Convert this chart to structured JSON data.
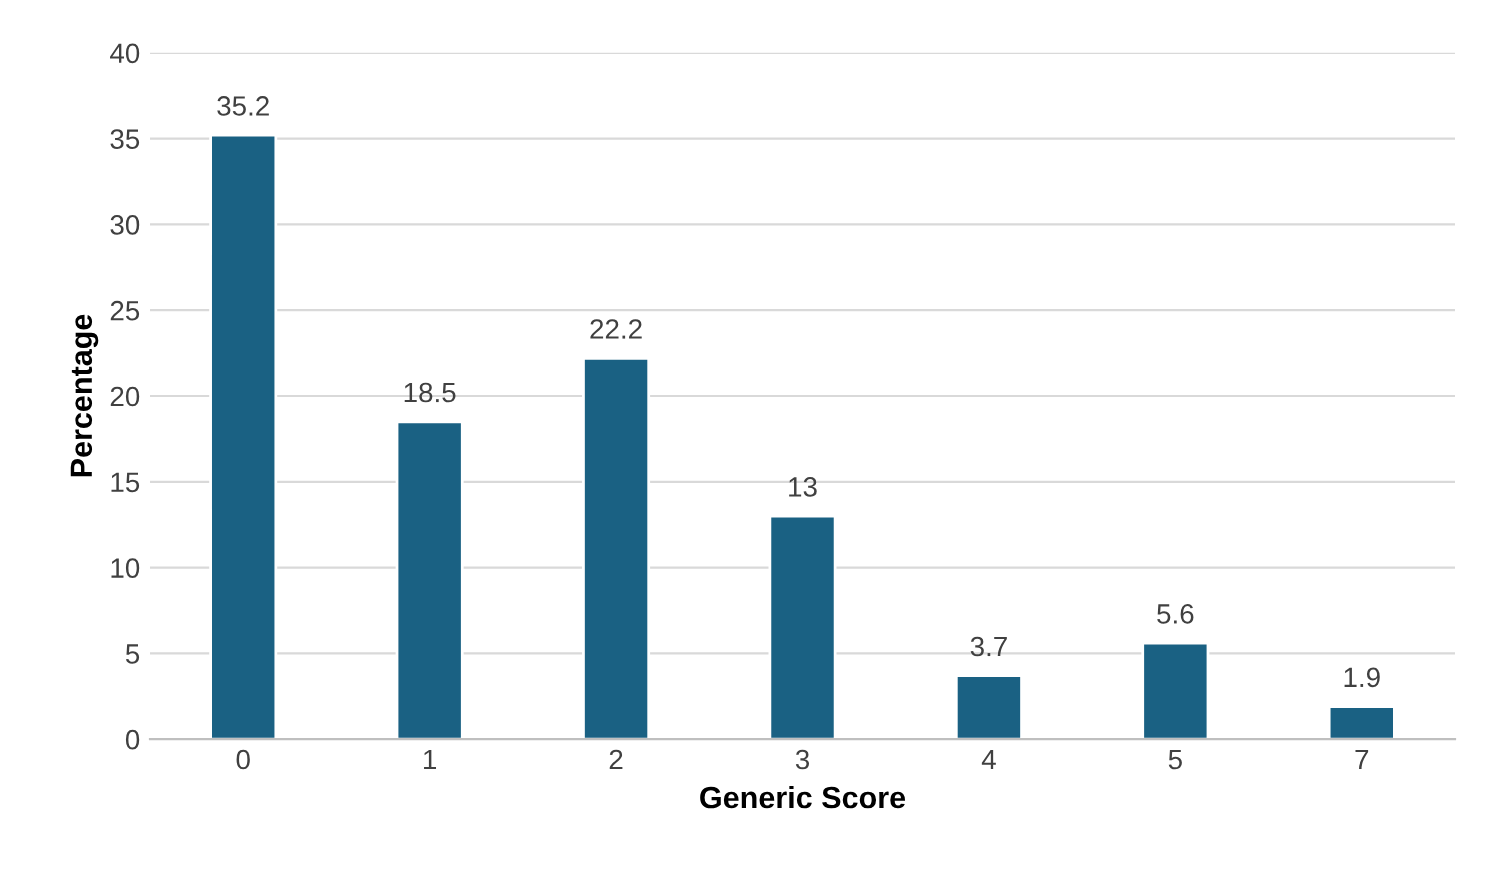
{
  "chart_data": {
    "type": "bar",
    "xlabel": "Generic Score",
    "ylabel": "Percentage",
    "categories": [
      "0",
      "1",
      "2",
      "3",
      "4",
      "5",
      "7"
    ],
    "values": [
      35.2,
      18.5,
      22.2,
      13,
      3.7,
      5.6,
      1.9
    ],
    "color": "#1a6183",
    "ylim": [
      0,
      40
    ],
    "yticks": [
      0,
      5,
      10,
      15,
      20,
      25,
      30,
      35,
      40
    ],
    "grid": "y",
    "data_labels": true
  }
}
